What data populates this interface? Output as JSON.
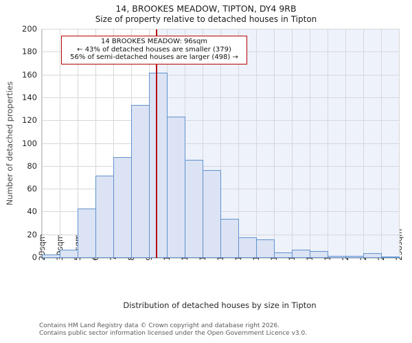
{
  "header": {
    "title": "14, BROOKES MEADOW, TIPTON, DY4 9RB",
    "subtitle": "Size of property relative to detached houses in Tipton"
  },
  "chart_data": {
    "type": "bar",
    "title": "14, BROOKES MEADOW, TIPTON, DY4 9RB",
    "subtitle": "Size of property relative to detached houses in Tipton",
    "xlabel": "Distribution of detached houses by size in Tipton",
    "ylabel": "Number of detached properties",
    "ylim": [
      0,
      200
    ],
    "ytick_step": 20,
    "grid": true,
    "categories": [
      "29sqm",
      "39sqm",
      "50sqm",
      "60sqm",
      "71sqm",
      "81sqm",
      "92sqm",
      "102sqm",
      "113sqm",
      "123sqm",
      "134sqm",
      "144sqm",
      "154sqm",
      "165sqm",
      "175sqm",
      "186sqm",
      "196sqm",
      "207sqm",
      "217sqm",
      "228sqm",
      "238sqm"
    ],
    "x_range_sqm": [
      29,
      238
    ],
    "values": [
      3,
      7,
      43,
      72,
      88,
      134,
      162,
      124,
      86,
      77,
      34,
      18,
      16,
      5,
      7,
      6,
      2,
      2,
      4,
      1
    ],
    "marker": {
      "value_sqm": 96,
      "annotation_lines": [
        "14 BROOKES MEADOW: 96sqm",
        "← 43% of detached houses are smaller (379)",
        "56% of semi-detached houses are larger (498) →"
      ]
    },
    "colors": {
      "bar_fill": "#dbe3f4",
      "bar_edge": "#6091cd",
      "marker_line": "#b40000",
      "annotation_border": "#b40000",
      "shade_right_of_marker": "#eef2fb",
      "gridline": "#d7d7d7"
    }
  },
  "footer": {
    "line1": "Contains HM Land Registry data © Crown copyright and database right 2026.",
    "line2": "Contains public sector information licensed under the Open Government Licence v3.0."
  }
}
